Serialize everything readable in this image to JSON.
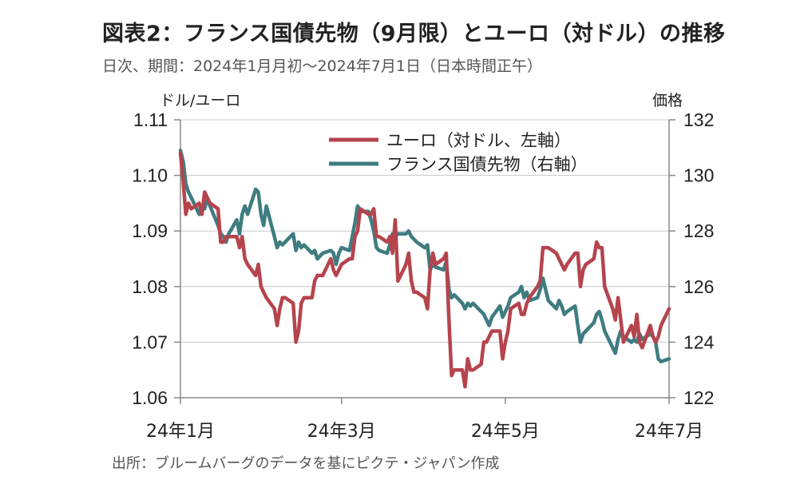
{
  "header": {
    "title": "図表2：フランス国債先物（9月限）とユーロ（対ドル）の推移",
    "subtitle": "日次、期間：2024年1月月初～2024年7月1日（日本時間正午）"
  },
  "footer": {
    "source": "出所：ブルームバーグのデータを基にピクテ・ジャパン作成"
  },
  "colors": {
    "euro": "#B5444D",
    "oat": "#3E7C80",
    "grid": "#c8c8c8",
    "axis": "#8a8a8a"
  },
  "chart_data": {
    "type": "line",
    "left_axis_label": "ドル/ユーロ",
    "right_axis_label": "価格",
    "left_ylim": [
      1.06,
      1.11
    ],
    "right_ylim": [
      122,
      132
    ],
    "left_ticks": [
      "1.11",
      "1.10",
      "1.09",
      "1.08",
      "1.07",
      "1.06"
    ],
    "right_ticks": [
      "132",
      "130",
      "128",
      "126",
      "124",
      "122"
    ],
    "x_range": [
      "2024-01-01",
      "2024-07-01"
    ],
    "x_ticks": [
      {
        "date": "2024-01-01",
        "label": "24年1月"
      },
      {
        "date": "2024-03-01",
        "label": "24年3月"
      },
      {
        "date": "2024-05-01",
        "label": "24年5月"
      },
      {
        "date": "2024-07-01",
        "label": "24年7月"
      }
    ],
    "grid": true,
    "legend_position": "top-center",
    "series": [
      {
        "name": "ユーロ（対ドル、左軸）",
        "axis": "left",
        "color": "#B5444D",
        "points": [
          [
            "2024-01-01",
            1.104
          ],
          [
            "2024-01-02",
            1.099
          ],
          [
            "2024-01-03",
            1.093
          ],
          [
            "2024-01-04",
            1.095
          ],
          [
            "2024-01-05",
            1.094
          ],
          [
            "2024-01-08",
            1.095
          ],
          [
            "2024-01-09",
            1.093
          ],
          [
            "2024-01-10",
            1.097
          ],
          [
            "2024-01-11",
            1.096
          ],
          [
            "2024-01-12",
            1.095
          ],
          [
            "2024-01-15",
            1.094
          ],
          [
            "2024-01-16",
            1.088
          ],
          [
            "2024-01-17",
            1.088
          ],
          [
            "2024-01-18",
            1.089
          ],
          [
            "2024-01-19",
            1.089
          ],
          [
            "2024-01-22",
            1.089
          ],
          [
            "2024-01-23",
            1.087
          ],
          [
            "2024-01-24",
            1.089
          ],
          [
            "2024-01-25",
            1.085
          ],
          [
            "2024-01-26",
            1.084
          ],
          [
            "2024-01-29",
            1.082
          ],
          [
            "2024-01-30",
            1.084
          ],
          [
            "2024-01-31",
            1.08
          ],
          [
            "2024-02-01",
            1.079
          ],
          [
            "2024-02-02",
            1.078
          ],
          [
            "2024-02-05",
            1.076
          ],
          [
            "2024-02-06",
            1.073
          ],
          [
            "2024-02-07",
            1.076
          ],
          [
            "2024-02-08",
            1.078
          ],
          [
            "2024-02-09",
            1.078
          ],
          [
            "2024-02-12",
            1.077
          ],
          [
            "2024-02-13",
            1.07
          ],
          [
            "2024-02-14",
            1.072
          ],
          [
            "2024-02-15",
            1.077
          ],
          [
            "2024-02-16",
            1.078
          ],
          [
            "2024-02-19",
            1.078
          ],
          [
            "2024-02-20",
            1.081
          ],
          [
            "2024-02-21",
            1.082
          ],
          [
            "2024-02-22",
            1.082
          ],
          [
            "2024-02-23",
            1.082
          ],
          [
            "2024-02-26",
            1.085
          ],
          [
            "2024-02-27",
            1.083
          ],
          [
            "2024-02-28",
            1.082
          ],
          [
            "2024-02-29",
            1.083
          ],
          [
            "2024-03-01",
            1.084
          ],
          [
            "2024-03-04",
            1.085
          ],
          [
            "2024-03-05",
            1.085
          ],
          [
            "2024-03-06",
            1.089
          ],
          [
            "2024-03-07",
            1.09
          ],
          [
            "2024-03-08",
            1.094
          ],
          [
            "2024-03-11",
            1.093
          ],
          [
            "2024-03-12",
            1.093
          ],
          [
            "2024-03-13",
            1.094
          ],
          [
            "2024-03-14",
            1.089
          ],
          [
            "2024-03-15",
            1.089
          ],
          [
            "2024-03-18",
            1.088
          ],
          [
            "2024-03-19",
            1.089
          ],
          [
            "2024-03-20",
            1.086
          ],
          [
            "2024-03-21",
            1.092
          ],
          [
            "2024-03-22",
            1.081
          ],
          [
            "2024-03-25",
            1.084
          ],
          [
            "2024-03-26",
            1.086
          ],
          [
            "2024-03-27",
            1.081
          ],
          [
            "2024-03-28",
            1.079
          ],
          [
            "2024-03-29",
            1.079
          ],
          [
            "2024-04-01",
            1.078
          ],
          [
            "2024-04-02",
            1.076
          ],
          [
            "2024-04-03",
            1.083
          ],
          [
            "2024-04-04",
            1.086
          ],
          [
            "2024-04-05",
            1.084
          ],
          [
            "2024-04-08",
            1.085
          ],
          [
            "2024-04-09",
            1.086
          ],
          [
            "2024-04-10",
            1.074
          ],
          [
            "2024-04-11",
            1.064
          ],
          [
            "2024-04-12",
            1.065
          ],
          [
            "2024-04-15",
            1.065
          ],
          [
            "2024-04-16",
            1.062
          ],
          [
            "2024-04-17",
            1.067
          ],
          [
            "2024-04-18",
            1.065
          ],
          [
            "2024-04-19",
            1.065
          ],
          [
            "2024-04-22",
            1.066
          ],
          [
            "2024-04-23",
            1.07
          ],
          [
            "2024-04-24",
            1.07
          ],
          [
            "2024-04-25",
            1.071
          ],
          [
            "2024-04-26",
            1.072
          ],
          [
            "2024-04-29",
            1.072
          ],
          [
            "2024-04-30",
            1.067
          ],
          [
            "2024-05-01",
            1.07
          ],
          [
            "2024-05-02",
            1.072
          ],
          [
            "2024-05-03",
            1.076
          ],
          [
            "2024-05-06",
            1.077
          ],
          [
            "2024-05-07",
            1.075
          ],
          [
            "2024-05-08",
            1.075
          ],
          [
            "2024-05-09",
            1.077
          ],
          [
            "2024-05-10",
            1.078
          ],
          [
            "2024-05-13",
            1.08
          ],
          [
            "2024-05-14",
            1.081
          ],
          [
            "2024-05-15",
            1.087
          ],
          [
            "2024-05-16",
            1.087
          ],
          [
            "2024-05-17",
            1.087
          ],
          [
            "2024-05-20",
            1.086
          ],
          [
            "2024-05-21",
            1.085
          ],
          [
            "2024-05-22",
            1.084
          ],
          [
            "2024-05-23",
            1.083
          ],
          [
            "2024-05-24",
            1.084
          ],
          [
            "2024-05-27",
            1.086
          ],
          [
            "2024-05-28",
            1.086
          ],
          [
            "2024-05-29",
            1.08
          ],
          [
            "2024-05-30",
            1.083
          ],
          [
            "2024-05-31",
            1.084
          ],
          [
            "2024-06-03",
            1.085
          ],
          [
            "2024-06-04",
            1.088
          ],
          [
            "2024-06-05",
            1.087
          ],
          [
            "2024-06-06",
            1.087
          ],
          [
            "2024-06-07",
            1.08
          ],
          [
            "2024-06-10",
            1.076
          ],
          [
            "2024-06-11",
            1.074
          ],
          [
            "2024-06-12",
            1.078
          ],
          [
            "2024-06-13",
            1.074
          ],
          [
            "2024-06-14",
            1.07
          ],
          [
            "2024-06-17",
            1.073
          ],
          [
            "2024-06-18",
            1.071
          ],
          [
            "2024-06-19",
            1.075
          ],
          [
            "2024-06-20",
            1.07
          ],
          [
            "2024-06-21",
            1.069
          ],
          [
            "2024-06-24",
            1.073
          ],
          [
            "2024-06-25",
            1.071
          ],
          [
            "2024-06-26",
            1.07
          ],
          [
            "2024-06-27",
            1.071
          ],
          [
            "2024-06-28",
            1.073
          ],
          [
            "2024-07-01",
            1.076
          ]
        ]
      },
      {
        "name": "フランス国債先物（右軸）",
        "axis": "right",
        "color": "#3E7C80",
        "points": [
          [
            "2024-01-01",
            130.9
          ],
          [
            "2024-01-02",
            130.5
          ],
          [
            "2024-01-03",
            129.7
          ],
          [
            "2024-01-04",
            129.4
          ],
          [
            "2024-01-05",
            129.2
          ],
          [
            "2024-01-08",
            128.6
          ],
          [
            "2024-01-09",
            128.9
          ],
          [
            "2024-01-10",
            128.8
          ],
          [
            "2024-01-11",
            129.2
          ],
          [
            "2024-01-12",
            128.9
          ],
          [
            "2024-01-15",
            128.2
          ],
          [
            "2024-01-16",
            127.9
          ],
          [
            "2024-01-17",
            127.8
          ],
          [
            "2024-01-18",
            127.6
          ],
          [
            "2024-01-19",
            127.9
          ],
          [
            "2024-01-22",
            128.4
          ],
          [
            "2024-01-23",
            127.9
          ],
          [
            "2024-01-24",
            128.6
          ],
          [
            "2024-01-25",
            128.9
          ],
          [
            "2024-01-26",
            128.6
          ],
          [
            "2024-01-29",
            129.5
          ],
          [
            "2024-01-30",
            129.4
          ],
          [
            "2024-01-31",
            128.6
          ],
          [
            "2024-02-01",
            128.2
          ],
          [
            "2024-02-02",
            128.9
          ],
          [
            "2024-02-05",
            127.8
          ],
          [
            "2024-02-06",
            127.4
          ],
          [
            "2024-02-07",
            127.6
          ],
          [
            "2024-02-08",
            127.5
          ],
          [
            "2024-02-09",
            127.6
          ],
          [
            "2024-02-12",
            127.9
          ],
          [
            "2024-02-13",
            127.3
          ],
          [
            "2024-02-14",
            127.6
          ],
          [
            "2024-02-15",
            127.4
          ],
          [
            "2024-02-16",
            127.5
          ],
          [
            "2024-02-19",
            127.2
          ],
          [
            "2024-02-20",
            127.3
          ],
          [
            "2024-02-21",
            127.0
          ],
          [
            "2024-02-22",
            127.1
          ],
          [
            "2024-02-23",
            127.2
          ],
          [
            "2024-02-26",
            127.3
          ],
          [
            "2024-02-27",
            127.2
          ],
          [
            "2024-02-28",
            126.8
          ],
          [
            "2024-02-29",
            127.2
          ],
          [
            "2024-03-01",
            127.4
          ],
          [
            "2024-03-04",
            127.3
          ],
          [
            "2024-03-05",
            127.8
          ],
          [
            "2024-03-06",
            128.3
          ],
          [
            "2024-03-07",
            128.9
          ],
          [
            "2024-03-08",
            128.7
          ],
          [
            "2024-03-11",
            128.7
          ],
          [
            "2024-03-12",
            128.4
          ],
          [
            "2024-03-13",
            128.0
          ],
          [
            "2024-03-14",
            127.4
          ],
          [
            "2024-03-15",
            127.3
          ],
          [
            "2024-03-18",
            127.2
          ],
          [
            "2024-03-19",
            127.5
          ],
          [
            "2024-03-20",
            127.9
          ],
          [
            "2024-03-21",
            127.8
          ],
          [
            "2024-03-22",
            127.9
          ],
          [
            "2024-03-25",
            127.9
          ],
          [
            "2024-03-26",
            128.0
          ],
          [
            "2024-03-27",
            127.8
          ],
          [
            "2024-03-28",
            127.7
          ],
          [
            "2024-03-29",
            127.6
          ],
          [
            "2024-04-01",
            127.4
          ],
          [
            "2024-04-02",
            127.5
          ],
          [
            "2024-04-03",
            126.6
          ],
          [
            "2024-04-04",
            126.8
          ],
          [
            "2024-04-05",
            126.7
          ],
          [
            "2024-04-08",
            126.6
          ],
          [
            "2024-04-09",
            126.9
          ],
          [
            "2024-04-10",
            125.9
          ],
          [
            "2024-04-11",
            125.6
          ],
          [
            "2024-04-12",
            125.7
          ],
          [
            "2024-04-15",
            125.4
          ],
          [
            "2024-04-16",
            125.2
          ],
          [
            "2024-04-17",
            125.4
          ],
          [
            "2024-04-18",
            125.3
          ],
          [
            "2024-04-19",
            125.4
          ],
          [
            "2024-04-22",
            125.1
          ],
          [
            "2024-04-23",
            125.0
          ],
          [
            "2024-04-24",
            124.8
          ],
          [
            "2024-04-25",
            124.6
          ],
          [
            "2024-04-26",
            124.9
          ],
          [
            "2024-04-29",
            125.3
          ],
          [
            "2024-04-30",
            124.9
          ],
          [
            "2024-05-01",
            125.1
          ],
          [
            "2024-05-02",
            125.3
          ],
          [
            "2024-05-03",
            125.6
          ],
          [
            "2024-05-06",
            125.8
          ],
          [
            "2024-05-07",
            126.0
          ],
          [
            "2024-05-08",
            125.6
          ],
          [
            "2024-05-09",
            125.8
          ],
          [
            "2024-05-10",
            125.5
          ],
          [
            "2024-05-13",
            125.6
          ],
          [
            "2024-05-14",
            125.9
          ],
          [
            "2024-05-15",
            126.3
          ],
          [
            "2024-05-16",
            125.9
          ],
          [
            "2024-05-17",
            125.5
          ],
          [
            "2024-05-20",
            125.2
          ],
          [
            "2024-05-21",
            125.5
          ],
          [
            "2024-05-22",
            125.3
          ],
          [
            "2024-05-23",
            125.0
          ],
          [
            "2024-05-24",
            125.1
          ],
          [
            "2024-05-27",
            125.3
          ],
          [
            "2024-05-28",
            124.6
          ],
          [
            "2024-05-29",
            124.0
          ],
          [
            "2024-05-30",
            124.3
          ],
          [
            "2024-05-31",
            124.4
          ],
          [
            "2024-06-03",
            124.7
          ],
          [
            "2024-06-04",
            125.0
          ],
          [
            "2024-06-05",
            125.1
          ],
          [
            "2024-06-06",
            124.8
          ],
          [
            "2024-06-07",
            124.4
          ],
          [
            "2024-06-10",
            123.8
          ],
          [
            "2024-06-11",
            123.6
          ],
          [
            "2024-06-12",
            124.1
          ],
          [
            "2024-06-13",
            124.4
          ],
          [
            "2024-06-14",
            124.2
          ],
          [
            "2024-06-17",
            124.0
          ],
          [
            "2024-06-18",
            124.1
          ],
          [
            "2024-06-19",
            124.0
          ],
          [
            "2024-06-20",
            124.3
          ],
          [
            "2024-06-21",
            124.1
          ],
          [
            "2024-06-24",
            124.3
          ],
          [
            "2024-06-25",
            124.2
          ],
          [
            "2024-06-26",
            124.0
          ],
          [
            "2024-06-27",
            123.4
          ],
          [
            "2024-06-28",
            123.3
          ],
          [
            "2024-07-01",
            123.4
          ]
        ]
      }
    ]
  }
}
